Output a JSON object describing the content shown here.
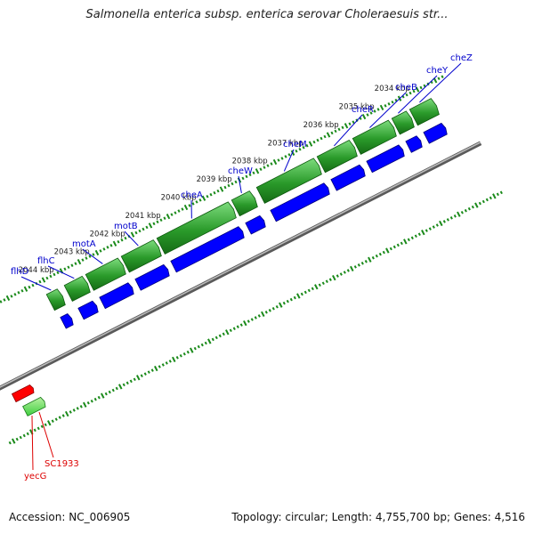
{
  "title": "Salmonella enterica subsp. enterica serovar Choleraesuis str...",
  "footer": {
    "accession": "Accession: NC_006905",
    "summary": "Topology: circular; Length: 4,755,700 bp; Genes: 4,516"
  },
  "colors": {
    "forward_cds": "#0000ff",
    "forward_gene": "#1e8c1e",
    "reverse_cds": "#ff0000",
    "reverse_gene": "#33cc33",
    "backbone": "#888888",
    "ticks": "#1a8a1a",
    "gene_label_forward": "#0000cc",
    "gene_label_reverse": "#dd0000"
  },
  "map": {
    "visible_range_kbp": [
      2033.2,
      2046.2
    ],
    "kbp_ticks": [
      {
        "kbp": 2034,
        "label": "2034 kbp"
      },
      {
        "kbp": 2035,
        "label": "2035 kbp"
      },
      {
        "kbp": 2036,
        "label": "2036 kbp"
      },
      {
        "kbp": 2037,
        "label": "2037 kbp"
      },
      {
        "kbp": 2038,
        "label": "2038 kbp"
      },
      {
        "kbp": 2039,
        "label": "2039 kbp"
      },
      {
        "kbp": 2040,
        "label": "2040 kbp"
      },
      {
        "kbp": 2041,
        "label": "2041 kbp"
      },
      {
        "kbp": 2042,
        "label": "2042 kbp"
      },
      {
        "kbp": 2043,
        "label": "2043 kbp"
      },
      {
        "kbp": 2044,
        "label": "2044 kbp"
      }
    ],
    "forward_genes": [
      {
        "name": "cheZ",
        "start": 2033.3,
        "end": 2033.9
      },
      {
        "name": "cheY",
        "start": 2034.0,
        "end": 2034.4
      },
      {
        "name": "cheB",
        "start": 2034.5,
        "end": 2035.5
      },
      {
        "name": "cheR",
        "start": 2035.6,
        "end": 2036.5
      },
      {
        "name": "cheM",
        "start": 2036.6,
        "end": 2038.2
      },
      {
        "name": "cheW",
        "start": 2038.4,
        "end": 2038.9
      },
      {
        "name": "cheA",
        "start": 2039.0,
        "end": 2041.0
      },
      {
        "name": "motB",
        "start": 2041.1,
        "end": 2042.0
      },
      {
        "name": "motA",
        "start": 2042.1,
        "end": 2043.0
      },
      {
        "name": "flhC",
        "start": 2043.1,
        "end": 2043.6
      },
      {
        "name": "flhD",
        "start": 2043.8,
        "end": 2044.1
      }
    ],
    "reverse_genes": [
      {
        "name": "yecG",
        "start": 2045.5,
        "end": 2046.0
      },
      {
        "name": "SC1933",
        "start": 2045.4,
        "end": 2045.9
      }
    ],
    "gene_labels": [
      {
        "name": "cheZ",
        "strand": "forward"
      },
      {
        "name": "cheY",
        "strand": "forward"
      },
      {
        "name": "cheB",
        "strand": "forward"
      },
      {
        "name": "cheR",
        "strand": "forward"
      },
      {
        "name": "cheM",
        "strand": "forward"
      },
      {
        "name": "cheW",
        "strand": "forward"
      },
      {
        "name": "cheA",
        "strand": "forward"
      },
      {
        "name": "motB",
        "strand": "forward"
      },
      {
        "name": "motA",
        "strand": "forward"
      },
      {
        "name": "flhC",
        "strand": "forward"
      },
      {
        "name": "flhD",
        "strand": "forward"
      },
      {
        "name": "SC1933",
        "strand": "reverse"
      },
      {
        "name": "yecG",
        "strand": "reverse"
      }
    ]
  }
}
